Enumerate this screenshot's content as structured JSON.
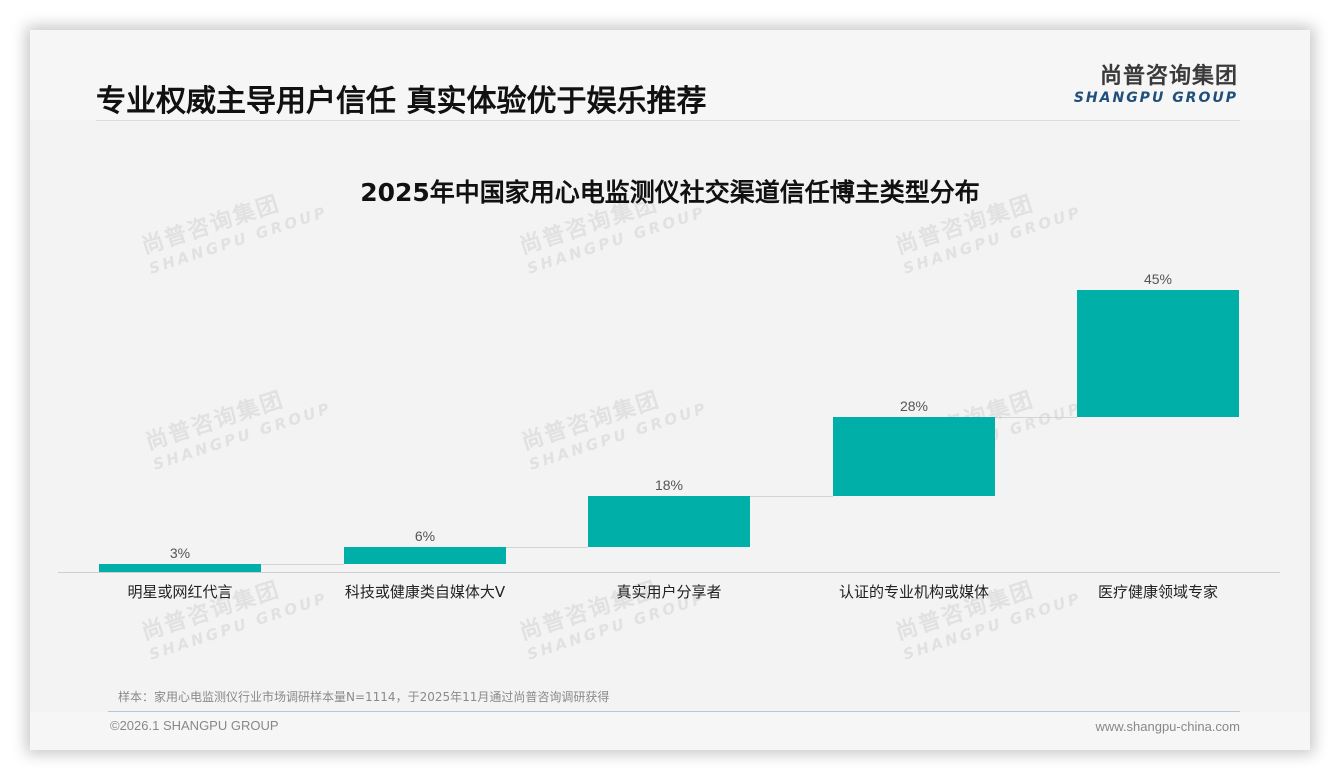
{
  "header": {
    "title": "专业权威主导用户信任 真实体验优于娱乐推荐",
    "logo_cn": "尚普咨询集团",
    "logo_en": "SHANGPU GROUP"
  },
  "watermark": {
    "cn": "尚普咨询集团",
    "en": "SHANGPU GROUP"
  },
  "colors": {
    "bar": "#00b0a8",
    "title": "#111111",
    "logo_en": "#1f4f7a"
  },
  "chart_data": {
    "type": "bar",
    "subtype": "waterfall",
    "title": "2025年中国家用心电监测仪社交渠道信任博主类型分布",
    "categories": [
      "明星或网红代言",
      "科技或健康类自媒体大V",
      "真实用户分享者",
      "认证的专业机构或媒体",
      "医疗健康领域专家"
    ],
    "values": [
      3,
      6,
      18,
      28,
      45
    ],
    "labels": [
      "3%",
      "6%",
      "18%",
      "28%",
      "45%"
    ],
    "unit": "%",
    "xlabel": "",
    "ylabel": "",
    "ylim": [
      0,
      100
    ],
    "grid": false,
    "legend": null
  },
  "footer": {
    "note": "样本：家用心电监测仪行业市场调研样本量N=1114，于2025年11月通过尚普咨询调研获得",
    "copyright": "©2026.1 SHANGPU GROUP",
    "website": "www.shangpu-china.com"
  }
}
